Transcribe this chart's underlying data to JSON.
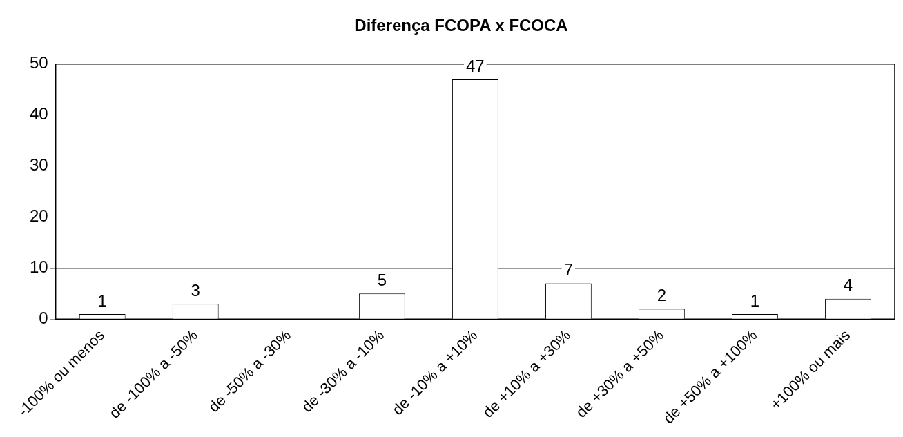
{
  "chart_data": {
    "type": "bar",
    "title": "Diferença FCOPA x FCOCA",
    "categories": [
      "-100% ou menos",
      "de -100% a -50%",
      "de -50% a -30%",
      "de -30% a -10%",
      "de -10% a +10%",
      "de +10% a +30%",
      "de +30% a +50%",
      "de +50% a +100%",
      "+100% ou mais"
    ],
    "values": [
      1,
      3,
      null,
      5,
      47,
      7,
      2,
      1,
      4
    ],
    "color": "#ffffff",
    "ylim": [
      0,
      50
    ],
    "yticks": [
      0,
      10,
      20,
      30,
      40,
      50
    ],
    "grid": "y",
    "data_labels": true,
    "legend": false
  }
}
